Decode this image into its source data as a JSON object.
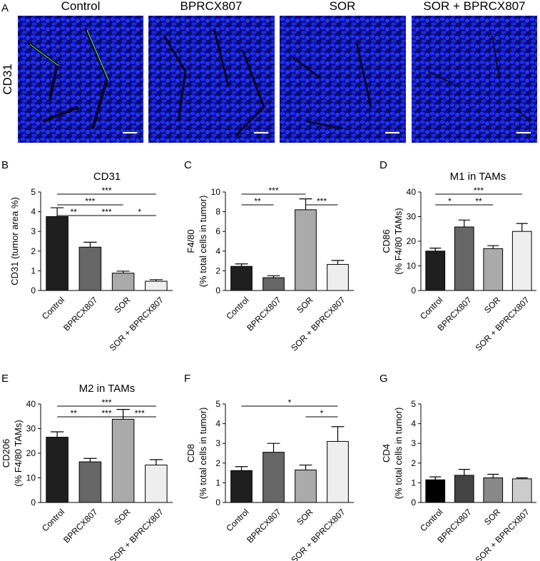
{
  "figure_a": {
    "panel": "A",
    "row_label": "CD31",
    "columns": [
      "Control",
      "BPRCX807",
      "SOR",
      "SOR + BPRCX807"
    ]
  },
  "chart_data": [
    {
      "type": "bar",
      "panel": "B",
      "title": "CD31",
      "y_label": [
        "CD31 (tumor area %)"
      ],
      "categories": [
        "Control",
        "BPRCX807",
        "SOR",
        "SOR + BPRCX807"
      ],
      "values": [
        3.75,
        2.2,
        0.88,
        0.47
      ],
      "errors": [
        0.45,
        0.25,
        0.1,
        0.08
      ],
      "colors": [
        "#1f1f1f",
        "#666666",
        "#aaaaaa",
        "#eeeeee"
      ],
      "ylim": [
        0,
        5
      ],
      "yticks": [
        0,
        1,
        2,
        3,
        4,
        5
      ],
      "significance": [
        {
          "pair": [
            "Control",
            "BPRCX807"
          ],
          "label": "**"
        },
        {
          "pair": [
            "BPRCX807",
            "SOR"
          ],
          "label": "***"
        },
        {
          "pair": [
            "Control",
            "SOR"
          ],
          "label": "***"
        },
        {
          "pair": [
            "SOR",
            "SOR + BPRCX807"
          ],
          "label": "*"
        },
        {
          "pair": [
            "Control",
            "SOR + BPRCX807"
          ],
          "label": "***"
        }
      ]
    },
    {
      "type": "bar",
      "panel": "C",
      "y_label": [
        "F4/80",
        "(% total cells in tumor)"
      ],
      "categories": [
        "Control",
        "BPRCX807",
        "SOR",
        "SOR + BPRCX807"
      ],
      "values": [
        2.45,
        1.3,
        8.2,
        2.65
      ],
      "errors": [
        0.25,
        0.2,
        1.1,
        0.4
      ],
      "colors": [
        "#1f1f1f",
        "#666666",
        "#aaaaaa",
        "#eeeeee"
      ],
      "ylim": [
        0,
        10
      ],
      "yticks": [
        0,
        2,
        4,
        6,
        8,
        10
      ],
      "significance": [
        {
          "pair": [
            "Control",
            "BPRCX807"
          ],
          "label": "**"
        },
        {
          "pair": [
            "Control",
            "SOR"
          ],
          "label": "***"
        },
        {
          "pair": [
            "SOR",
            "SOR + BPRCX807"
          ],
          "label": "***"
        }
      ]
    },
    {
      "type": "bar",
      "panel": "D",
      "title": "M1 in TAMs",
      "y_label": [
        "CD86",
        "(% F4/80 TAMs)"
      ],
      "categories": [
        "Control",
        "BPRCX807",
        "SOR",
        "SOR + BPRCX807"
      ],
      "values": [
        16,
        25.8,
        17,
        24
      ],
      "errors": [
        1.2,
        2.8,
        1.2,
        3.2
      ],
      "colors": [
        "#1f1f1f",
        "#666666",
        "#aaaaaa",
        "#eeeeee"
      ],
      "ylim": [
        0,
        40
      ],
      "yticks": [
        0,
        10,
        20,
        30,
        40
      ],
      "significance": [
        {
          "pair": [
            "Control",
            "BPRCX807"
          ],
          "label": "*"
        },
        {
          "pair": [
            "BPRCX807",
            "SOR"
          ],
          "label": "**"
        },
        {
          "pair": [
            "Control",
            "SOR + BPRCX807"
          ],
          "label": "***"
        }
      ]
    },
    {
      "type": "bar",
      "panel": "E",
      "title": "M2 in TAMs",
      "y_label": [
        "CD206",
        "(% F4/80 TAMs)"
      ],
      "categories": [
        "Control",
        "BPRCX807",
        "SOR",
        "SOR + BPRCX807"
      ],
      "values": [
        26.5,
        16.5,
        33.8,
        15.2
      ],
      "errors": [
        2.2,
        1.4,
        4,
        2.2
      ],
      "colors": [
        "#1f1f1f",
        "#666666",
        "#aaaaaa",
        "#eeeeee"
      ],
      "ylim": [
        0,
        40
      ],
      "yticks": [
        0,
        10,
        20,
        30,
        40
      ],
      "significance": [
        {
          "pair": [
            "Control",
            "BPRCX807"
          ],
          "label": "**"
        },
        {
          "pair": [
            "BPRCX807",
            "SOR"
          ],
          "label": "***"
        },
        {
          "pair": [
            "SOR",
            "SOR + BPRCX807"
          ],
          "label": "***"
        },
        {
          "pair": [
            "Control",
            "SOR + BPRCX807"
          ],
          "label": "***"
        }
      ]
    },
    {
      "type": "bar",
      "panel": "F",
      "y_label": [
        "CD8",
        "(% total cells in tumor)"
      ],
      "categories": [
        "Control",
        "BPRCX807",
        "SOR",
        "SOR + BPRCX807"
      ],
      "values": [
        1.62,
        2.55,
        1.65,
        3.1
      ],
      "errors": [
        0.2,
        0.45,
        0.25,
        0.75
      ],
      "colors": [
        "#1f1f1f",
        "#666666",
        "#aaaaaa",
        "#eeeeee"
      ],
      "ylim": [
        0,
        5
      ],
      "yticks": [
        0,
        1,
        2,
        3,
        4,
        5
      ],
      "significance": [
        {
          "pair": [
            "Control",
            "SOR + BPRCX807"
          ],
          "label": "*"
        },
        {
          "pair": [
            "SOR",
            "SOR + BPRCX807"
          ],
          "label": "*"
        }
      ]
    },
    {
      "type": "bar",
      "panel": "G",
      "y_label": [
        "CD4",
        "(% total cells in tumor)"
      ],
      "categories": [
        "Control",
        "BPRCX807",
        "SOR",
        "SOR + BPRCX807"
      ],
      "values": [
        1.15,
        1.38,
        1.25,
        1.2
      ],
      "errors": [
        0.15,
        0.3,
        0.18,
        0.05
      ],
      "colors": [
        "#000000",
        "#444444",
        "#888888",
        "#cccccc"
      ],
      "ylim": [
        0,
        5
      ],
      "yticks": [
        0,
        1,
        2,
        3,
        4,
        5
      ],
      "significance": []
    }
  ]
}
